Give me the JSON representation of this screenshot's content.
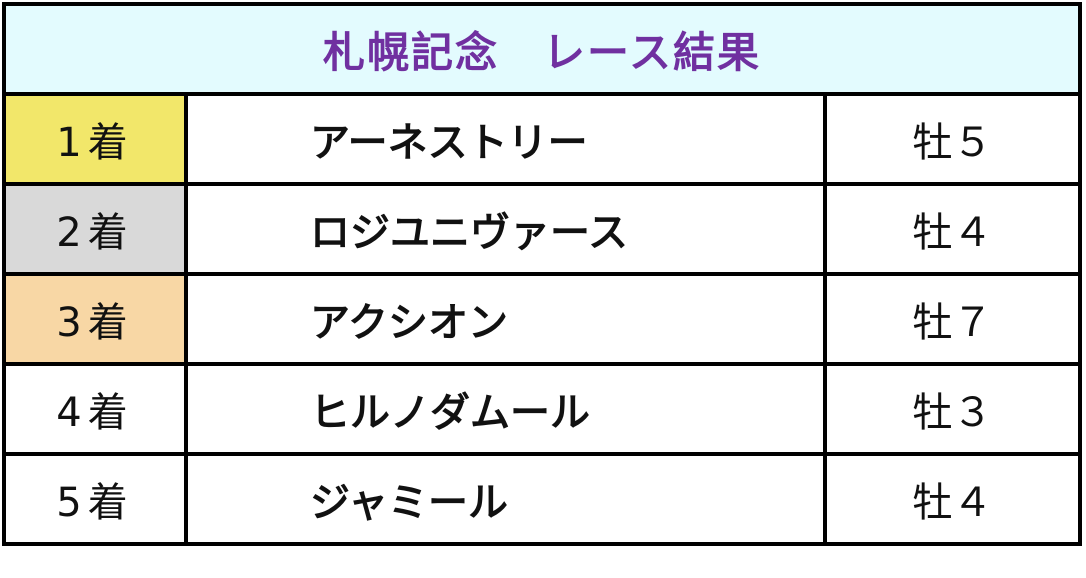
{
  "title": "札幌記念　レース結果",
  "colors": {
    "title_bg": "#e3fbfe",
    "title_text": "#7030a0",
    "first": "#f2e76a",
    "second": "#d9d9d9",
    "third": "#f8d7a5",
    "other": "#ffffff"
  },
  "rows": [
    {
      "place": "1着",
      "horse": "アーネストリー",
      "sex_age": "牡５"
    },
    {
      "place": "2着",
      "horse": "ロジユニヴァース",
      "sex_age": "牡４"
    },
    {
      "place": "3着",
      "horse": "アクシオン",
      "sex_age": "牡７"
    },
    {
      "place": "4着",
      "horse": "ヒルノダムール",
      "sex_age": "牡３"
    },
    {
      "place": "5着",
      "horse": "ジャミール",
      "sex_age": "牡４"
    }
  ]
}
